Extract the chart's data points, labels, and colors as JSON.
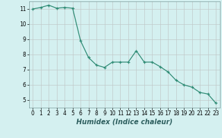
{
  "x": [
    0,
    1,
    2,
    3,
    4,
    5,
    6,
    7,
    8,
    9,
    10,
    11,
    12,
    13,
    14,
    15,
    16,
    17,
    18,
    19,
    20,
    21,
    22,
    23
  ],
  "y": [
    11.0,
    11.1,
    11.25,
    11.05,
    11.1,
    11.05,
    8.9,
    7.8,
    7.3,
    7.15,
    7.5,
    7.5,
    7.5,
    8.25,
    7.5,
    7.5,
    7.2,
    6.85,
    6.3,
    6.0,
    5.85,
    5.5,
    5.4,
    4.8
  ],
  "xlabel": "Humidex (Indice chaleur)",
  "line_color": "#2e8b74",
  "marker": "+",
  "bg_color": "#d4f0f0",
  "grid_color": "#c0c8c8",
  "xlim": [
    -0.5,
    23.5
  ],
  "ylim": [
    4.5,
    11.5
  ],
  "yticks": [
    5,
    6,
    7,
    8,
    9,
    10,
    11
  ],
  "xticks": [
    0,
    1,
    2,
    3,
    4,
    5,
    6,
    7,
    8,
    9,
    10,
    11,
    12,
    13,
    14,
    15,
    16,
    17,
    18,
    19,
    20,
    21,
    22,
    23
  ],
  "tick_fontsize": 5.5,
  "xlabel_fontsize": 7.0
}
